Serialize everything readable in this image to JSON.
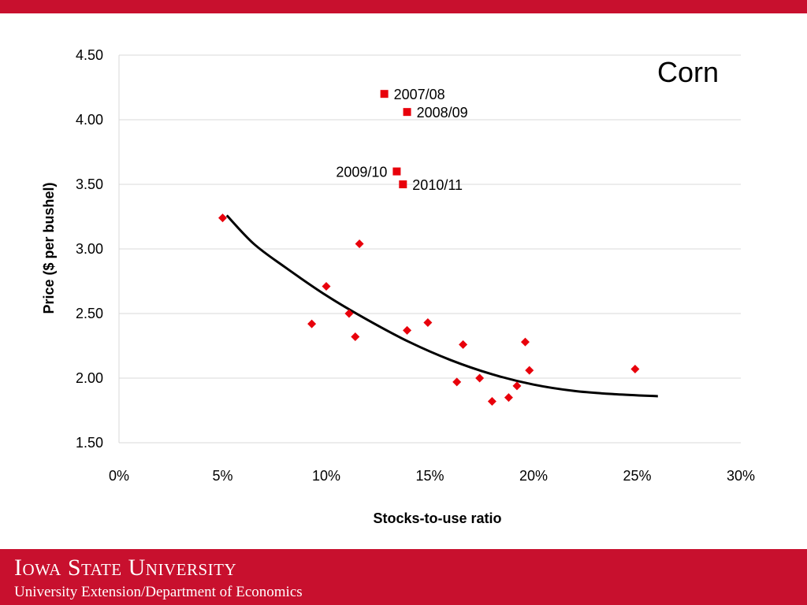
{
  "chart_data": {
    "type": "scatter",
    "title": "Corn",
    "xlabel": "Stocks-to-use ratio",
    "ylabel": "Price ($ per bushel)",
    "xlim": [
      0,
      30
    ],
    "ylim": [
      1.5,
      4.5
    ],
    "x_ticks": [
      "0%",
      "5%",
      "10%",
      "15%",
      "20%",
      "25%",
      "30%"
    ],
    "y_ticks": [
      "1.50",
      "2.00",
      "2.50",
      "3.00",
      "3.50",
      "4.00",
      "4.50"
    ],
    "grid": "horizontal",
    "series": [
      {
        "marker": "diamond",
        "color": "#e8000b",
        "points": [
          [
            5.0,
            3.24
          ],
          [
            9.3,
            2.42
          ],
          [
            10.0,
            2.71
          ],
          [
            11.1,
            2.5
          ],
          [
            11.4,
            2.32
          ],
          [
            11.6,
            3.04
          ],
          [
            13.9,
            2.37
          ],
          [
            14.9,
            2.43
          ],
          [
            16.3,
            1.97
          ],
          [
            16.6,
            2.26
          ],
          [
            17.4,
            2.0
          ],
          [
            18.0,
            1.82
          ],
          [
            18.8,
            1.85
          ],
          [
            19.2,
            1.94
          ],
          [
            19.6,
            2.28
          ],
          [
            19.8,
            2.06
          ],
          [
            24.9,
            2.07
          ]
        ]
      },
      {
        "marker": "square",
        "color": "#e8000b",
        "points": [
          {
            "x": 12.8,
            "y": 4.2,
            "label": "2007/08"
          },
          {
            "x": 13.9,
            "y": 4.06,
            "label": "2008/09"
          },
          {
            "x": 13.4,
            "y": 3.6,
            "label": "2009/10"
          },
          {
            "x": 13.7,
            "y": 3.5,
            "label": "2010/11"
          }
        ]
      }
    ],
    "trendline": {
      "color": "#000000",
      "points": [
        [
          5.2,
          3.26
        ],
        [
          6.5,
          3.04
        ],
        [
          8.0,
          2.86
        ],
        [
          10.0,
          2.64
        ],
        [
          12.0,
          2.45
        ],
        [
          14.0,
          2.28
        ],
        [
          16.0,
          2.14
        ],
        [
          18.0,
          2.03
        ],
        [
          20.0,
          1.95
        ],
        [
          22.0,
          1.9
        ],
        [
          24.0,
          1.875
        ],
        [
          26.0,
          1.86
        ]
      ]
    }
  },
  "footer": {
    "institution": "Iowa State University",
    "department": "University Extension/Department of Economics"
  },
  "colors": {
    "brand": "#c8102e",
    "marker": "#e8000b"
  }
}
